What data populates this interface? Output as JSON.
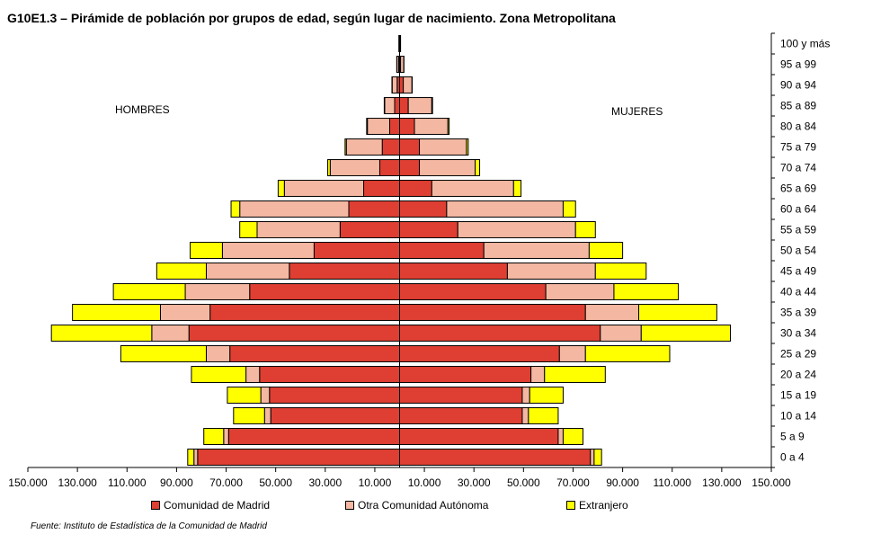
{
  "title": "G10E1.3 – Pirámide de población por grupos de edad, según lugar de nacimiento.  Zona Metropolitana",
  "source": "Fuente: Instituto de Estadística de la Comunidad de Madrid",
  "colors": {
    "madrid": "#de3f32",
    "otra": "#f4b8a2",
    "extranjero": "#ffff00"
  },
  "chart_data": {
    "type": "bar",
    "orientation": "horizontal-pyramid",
    "side_labels": {
      "left": "HOMBRES",
      "right": "MUJERES"
    },
    "categories": [
      "0 a 4",
      "5 a 9",
      "10 a 14",
      "15 a 19",
      "20 a 24",
      "25 a 29",
      "30 a 34",
      "35 a 39",
      "40 a 44",
      "45 a 49",
      "50 a 54",
      "55 a 59",
      "60 a 64",
      "65 a 69",
      "70 a 74",
      "75 a 79",
      "80 a 84",
      "85 a 89",
      "90 a 94",
      "95 a 99",
      "100 y más"
    ],
    "xlim": [
      -150000,
      150000
    ],
    "xticks": [
      -150000,
      -130000,
      -110000,
      -90000,
      -70000,
      -50000,
      -30000,
      -10000,
      10000,
      30000,
      50000,
      70000,
      90000,
      110000,
      130000,
      150000
    ],
    "xtick_labels": [
      "150.000",
      "130.000",
      "110.000",
      "90.000",
      "70.000",
      "50.000",
      "30.000",
      "10.000",
      "10.000",
      "30.000",
      "50.000",
      "70.000",
      "90.000",
      "110.000",
      "130.000",
      "150.000"
    ],
    "legend_position": "bottom",
    "series": [
      {
        "name": "Comunidad de Madrid",
        "color_key": "madrid",
        "hombres": [
          81500,
          69000,
          52000,
          52500,
          56500,
          68500,
          85000,
          76500,
          60500,
          44500,
          34500,
          24000,
          20500,
          14500,
          8000,
          7000,
          4000,
          2000,
          1000,
          400,
          100
        ],
        "mujeres": [
          77000,
          64000,
          49500,
          49500,
          53000,
          64500,
          81000,
          75000,
          59000,
          43500,
          34000,
          23500,
          19000,
          13000,
          8000,
          8000,
          6000,
          3500,
          1500,
          400,
          100
        ]
      },
      {
        "name": "Otra Comunidad Autónoma",
        "color_key": "otra",
        "hombres": [
          1500,
          2000,
          2500,
          3500,
          5500,
          9500,
          15000,
          20000,
          26000,
          33500,
          37000,
          33500,
          44000,
          32000,
          20000,
          14500,
          9000,
          4000,
          2000,
          700,
          200
        ],
        "mujeres": [
          1500,
          2000,
          2500,
          3000,
          5500,
          10500,
          16500,
          21500,
          27500,
          35500,
          42500,
          47500,
          47000,
          33000,
          22500,
          19000,
          13500,
          9500,
          3500,
          1300,
          300
        ]
      },
      {
        "name": "Extranjero",
        "color_key": "extranjero",
        "hombres": [
          2500,
          8000,
          12500,
          13500,
          22000,
          34500,
          40500,
          35500,
          29000,
          20000,
          13000,
          7000,
          3500,
          2500,
          1000,
          500,
          300,
          200,
          100,
          50,
          0
        ],
        "mujeres": [
          3000,
          8000,
          12000,
          13500,
          24500,
          34000,
          36000,
          31500,
          26000,
          20500,
          13500,
          8000,
          5000,
          3000,
          1800,
          700,
          500,
          300,
          100,
          50,
          0
        ]
      }
    ]
  }
}
